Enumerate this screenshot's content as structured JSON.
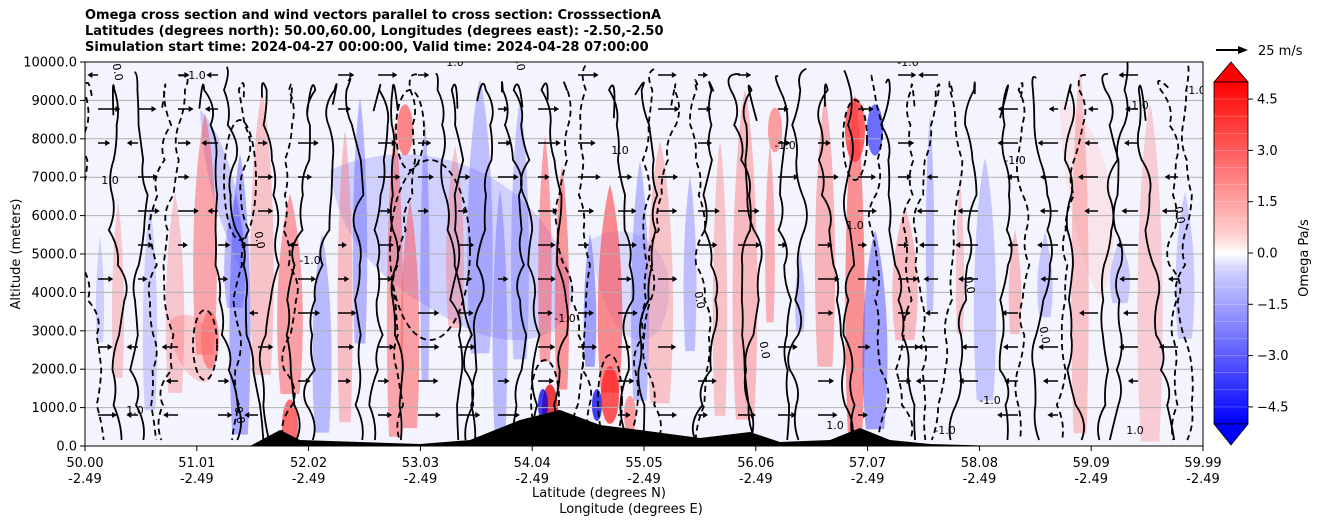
{
  "chart_data": {
    "type": "contour",
    "title_lines": [
      "Omega cross section and wind vectors parallel to cross section: CrosssectionA",
      "Latitudes (degrees north): 50.00,60.00, Longitudes (degrees east): -2.50,-2.50",
      "Simulation start time: 2024-04-27 00:00:00, Valid time: 2024-04-28 07:00:00"
    ],
    "ylabel": "Altitude (meters)",
    "xlabel_lat": "Latitude (degrees N)",
    "xlabel_lon": "Longitude (degrees E)",
    "ylim": [
      0,
      10000
    ],
    "y_ticks": [
      "0.0",
      "1000.0",
      "2000.0",
      "3000.0",
      "4000.0",
      "5000.0",
      "6000.0",
      "7000.0",
      "8000.0",
      "9000.0",
      "10000.0"
    ],
    "x_ticks": [
      {
        "lat": "50.00",
        "lon": "-2.49"
      },
      {
        "lat": "51.01",
        "lon": "-2.49"
      },
      {
        "lat": "52.02",
        "lon": "-2.49"
      },
      {
        "lat": "53.03",
        "lon": "-2.49"
      },
      {
        "lat": "54.04",
        "lon": "-2.49"
      },
      {
        "lat": "55.05",
        "lon": "-2.49"
      },
      {
        "lat": "56.06",
        "lon": "-2.49"
      },
      {
        "lat": "57.07",
        "lon": "-2.49"
      },
      {
        "lat": "58.08",
        "lon": "-2.49"
      },
      {
        "lat": "59.09",
        "lon": "-2.49"
      },
      {
        "lat": "59.99",
        "lon": "-2.49"
      }
    ],
    "colorbar": {
      "label": "Omega Pa/s",
      "range": [
        -5.0,
        5.0
      ],
      "ticks": [
        "4.5",
        "3.0",
        "1.5",
        "0.0",
        "−1.5",
        "−3.0",
        "−4.5"
      ]
    },
    "quiver_key": "25 m/s",
    "contour_labels": [
      "0.0",
      "-1.0",
      "1.0"
    ],
    "colors": {
      "positive": "#ff0000",
      "negative": "#0000ff",
      "neutral": "#ffffff",
      "terrain": "#000000"
    }
  }
}
